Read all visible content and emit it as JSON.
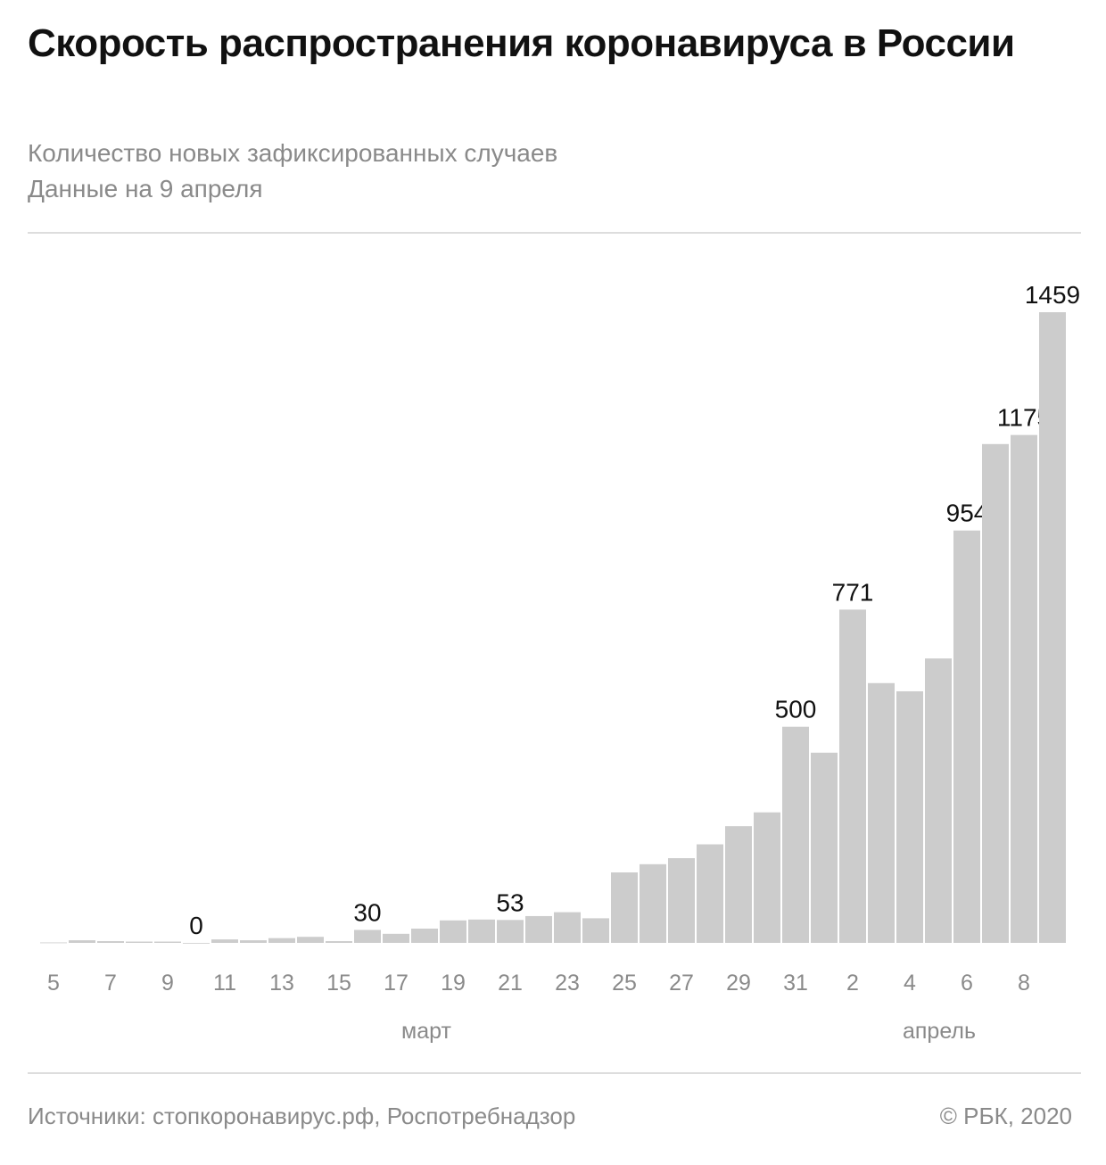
{
  "title": "Скорость распространения коронавируса в России",
  "subtitle": [
    "Количество новых зафиксированных случаев",
    "Данные на 9 апреля"
  ],
  "footer": {
    "source": "Источники: стопкоронавирус.рф, Роспотребнадзор",
    "copyright": "© РБК, 2020"
  },
  "chart_data": {
    "type": "bar",
    "title": "Скорость распространения коронавируса в России",
    "xlabel": "",
    "ylabel": "",
    "categories": [
      "5",
      "6",
      "7",
      "8",
      "9",
      "10",
      "11",
      "12",
      "13",
      "14",
      "15",
      "16",
      "17",
      "18",
      "19",
      "20",
      "21",
      "22",
      "23",
      "24",
      "25",
      "26",
      "27",
      "28",
      "29",
      "30",
      "31",
      "1",
      "2",
      "3",
      "4",
      "5",
      "6",
      "7",
      "8",
      "9"
    ],
    "values": [
      1,
      6,
      4,
      3,
      3,
      0,
      8,
      6,
      11,
      14,
      4,
      30,
      21,
      33,
      52,
      54,
      53,
      62,
      71,
      57,
      163,
      182,
      196,
      228,
      270,
      302,
      500,
      440,
      771,
      601,
      582,
      658,
      954,
      1154,
      1175,
      1459
    ],
    "data_labels": {
      "5": "0",
      "11": "30",
      "16": "53",
      "26": "500",
      "28": "771",
      "32": "954",
      "34": "1175",
      "35": "1459"
    },
    "tick_labels": [
      "5",
      "7",
      "9",
      "11",
      "13",
      "15",
      "17",
      "19",
      "21",
      "23",
      "25",
      "27",
      "29",
      "31",
      "2",
      "4",
      "6",
      "8"
    ],
    "months": [
      "март",
      "апрель"
    ],
    "ylim": [
      0,
      1459
    ],
    "grid": false,
    "bar_color": "#cccccc"
  }
}
